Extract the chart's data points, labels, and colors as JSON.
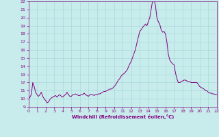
{
  "xlabel": "Windchill (Refroidissement éolien,°C)",
  "xlim": [
    0,
    22
  ],
  "ylim": [
    9,
    22
  ],
  "yticks": [
    9,
    10,
    11,
    12,
    13,
    14,
    15,
    16,
    17,
    18,
    19,
    20,
    21,
    22
  ],
  "xticks": [
    0,
    1,
    2,
    3,
    4,
    5,
    6,
    7,
    8,
    9,
    10,
    11,
    12,
    13,
    14,
    15,
    16,
    17,
    18,
    19,
    20,
    21,
    22
  ],
  "line_color": "#800080",
  "bg_color": "#c8ecec",
  "grid_color": "#a8d8d8",
  "x": [
    0,
    0.17,
    0.33,
    0.5,
    0.67,
    0.83,
    1,
    1.17,
    1.33,
    1.5,
    1.67,
    1.83,
    2,
    2.17,
    2.33,
    2.5,
    2.67,
    2.83,
    3,
    3.17,
    3.33,
    3.5,
    3.67,
    3.83,
    4,
    4.17,
    4.33,
    4.5,
    4.67,
    4.83,
    5,
    5.17,
    5.33,
    5.5,
    5.67,
    5.83,
    6,
    6.17,
    6.33,
    6.5,
    6.67,
    6.83,
    7,
    7.17,
    7.33,
    7.5,
    7.67,
    7.83,
    8,
    8.17,
    8.33,
    8.5,
    8.67,
    8.83,
    9,
    9.17,
    9.33,
    9.5,
    9.67,
    9.83,
    10,
    10.17,
    10.33,
    10.5,
    10.67,
    10.83,
    11,
    11.17,
    11.33,
    11.5,
    11.67,
    11.83,
    12,
    12.17,
    12.33,
    12.5,
    12.67,
    12.83,
    13,
    13.17,
    13.33,
    13.5,
    13.67,
    13.83,
    14,
    14.17,
    14.33,
    14.5,
    14.67,
    14.83,
    15,
    15.17,
    15.33,
    15.5,
    15.67,
    15.83,
    16,
    16.17,
    16.33,
    16.5,
    16.67,
    16.83,
    17,
    17.17,
    17.33,
    17.5,
    17.67,
    17.83,
    18,
    18.17,
    18.33,
    18.5,
    18.67,
    18.83,
    19,
    19.17,
    19.33,
    19.5,
    19.67,
    19.83,
    20,
    20.17,
    20.33,
    20.5,
    20.67,
    20.83,
    21,
    21.17,
    21.33,
    21.5,
    21.67,
    21.83,
    22
  ],
  "y": [
    10.0,
    10.2,
    10.5,
    12.0,
    11.5,
    10.8,
    10.5,
    10.3,
    10.5,
    10.8,
    10.3,
    10.0,
    9.8,
    9.5,
    9.6,
    9.9,
    10.1,
    10.2,
    10.3,
    10.4,
    10.2,
    10.4,
    10.5,
    10.3,
    10.2,
    10.4,
    10.5,
    10.8,
    10.5,
    10.3,
    10.3,
    10.5,
    10.5,
    10.6,
    10.5,
    10.4,
    10.4,
    10.5,
    10.5,
    10.7,
    10.5,
    10.4,
    10.3,
    10.5,
    10.5,
    10.5,
    10.4,
    10.5,
    10.5,
    10.6,
    10.6,
    10.7,
    10.8,
    10.9,
    10.9,
    11.0,
    11.1,
    11.2,
    11.2,
    11.3,
    11.5,
    11.7,
    12.0,
    12.3,
    12.5,
    12.8,
    13.0,
    13.1,
    13.3,
    13.5,
    13.9,
    14.3,
    14.6,
    15.1,
    15.6,
    16.1,
    16.9,
    17.6,
    18.3,
    18.5,
    18.8,
    19.0,
    19.2,
    19.0,
    19.5,
    20.0,
    21.0,
    22.1,
    22.2,
    21.5,
    20.0,
    19.5,
    19.2,
    18.5,
    18.2,
    18.3,
    18.0,
    17.0,
    15.5,
    14.8,
    14.5,
    14.3,
    14.2,
    13.2,
    12.5,
    12.0,
    12.0,
    12.1,
    12.2,
    12.3,
    12.3,
    12.2,
    12.1,
    12.1,
    12.0,
    12.0,
    12.0,
    12.0,
    12.0,
    11.8,
    11.5,
    11.4,
    11.3,
    11.2,
    11.0,
    11.0,
    10.8,
    10.7,
    10.7,
    10.6,
    10.6,
    10.5,
    10.5
  ]
}
